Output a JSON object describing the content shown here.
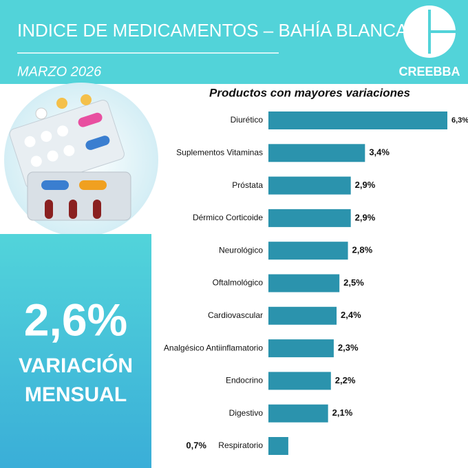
{
  "header": {
    "title": "INDICE DE MEDICAMENTOS – BAHÍA BLANCA",
    "subtitle": "MARZO 2026",
    "logo": "CREEBBA"
  },
  "kpi": {
    "value": "2,6%",
    "caption": [
      "VARIACIÓN",
      "MENSUAL"
    ]
  },
  "chart_data": {
    "type": "bar",
    "orientation": "horizontal",
    "title": "Productos con mayores variaciones",
    "categories": [
      "Diurético",
      "Suplementos Vitaminas",
      "Próstata",
      "Dérmico Corticoide",
      "Neurológico",
      "Oftalmológico",
      "Cardiovascular",
      "Analgésico Antiinflamatorio",
      "Endocrino",
      "Digestivo",
      "Respiratorio"
    ],
    "values": [
      6.3,
      3.4,
      2.9,
      2.9,
      2.8,
      2.5,
      2.4,
      2.3,
      2.2,
      2.1,
      0.7
    ],
    "value_labels": [
      "6,3%",
      "3,4%",
      "2,9%",
      "2,9%",
      "2,8%",
      "2,5%",
      "2,4%",
      "2,3%",
      "2,2%",
      "2,1%",
      "0,7%"
    ],
    "color": "#2b93ad"
  }
}
